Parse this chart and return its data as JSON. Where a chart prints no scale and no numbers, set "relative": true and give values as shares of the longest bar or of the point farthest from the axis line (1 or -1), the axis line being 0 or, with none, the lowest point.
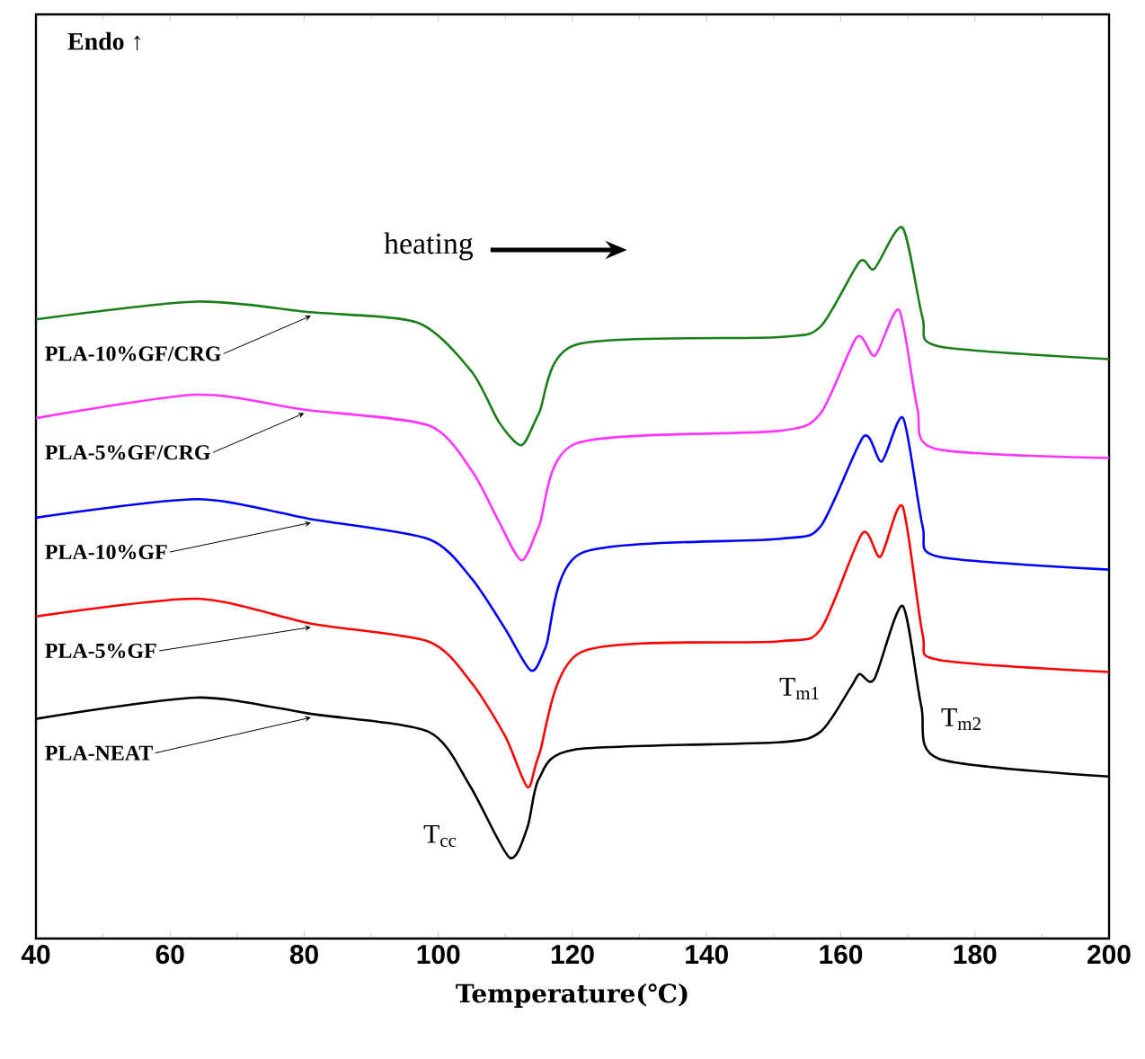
{
  "chart_data": {
    "type": "line",
    "relative": true,
    "xlabel": "Temperature(℃)",
    "xlim": [
      40,
      200
    ],
    "xticks": [
      40,
      60,
      80,
      100,
      120,
      140,
      160,
      180,
      200
    ],
    "annotations": [
      "Endo ↑",
      "heating",
      "T$_{cc}$",
      "T$_{m1}$",
      "T$_{m2}$"
    ],
    "legend": false,
    "grid": false,
    "marker": "none",
    "line_style": "solid",
    "series": [
      {
        "name": "PLA-10%GF/CRG",
        "color": "#1a7f1a",
        "x": [
          40,
          64,
          81,
          97,
          105,
          109,
          112.4,
          115,
          120.4,
          150.7,
          157,
          162.8,
          165,
          169.2,
          172.2,
          174.6,
          200
        ],
        "values": [
          0.871,
          0.896,
          0.881,
          0.866,
          0.797,
          0.727,
          0.694,
          0.739,
          0.835,
          0.846,
          0.861,
          0.952,
          0.942,
          1.0,
          0.873,
          0.833,
          0.815
        ]
      },
      {
        "name": "PLA-5%GF/CRG",
        "color": "#ff33ff",
        "x": [
          40,
          64,
          80,
          98.5,
          105,
          109,
          112.4,
          115,
          120.4,
          150.7,
          157,
          162.4,
          165.1,
          168.7,
          171.4,
          174.1,
          200
        ],
        "values": [
          0.732,
          0.765,
          0.744,
          0.722,
          0.658,
          0.587,
          0.532,
          0.58,
          0.696,
          0.714,
          0.739,
          0.846,
          0.82,
          0.884,
          0.747,
          0.689,
          0.676
        ]
      },
      {
        "name": "PLA-10%GF",
        "color": "#0000ff",
        "x": [
          40,
          64,
          81,
          98.5,
          105,
          110,
          113.8,
          116,
          121.3,
          150.7,
          157,
          163.4,
          166.1,
          169.3,
          172.2,
          174.6,
          200
        ],
        "values": [
          0.592,
          0.618,
          0.59,
          0.562,
          0.506,
          0.435,
          0.377,
          0.41,
          0.542,
          0.562,
          0.58,
          0.706,
          0.671,
          0.732,
          0.58,
          0.537,
          0.519
        ]
      },
      {
        "name": "PLA-5%GF",
        "color": "#ff0000",
        "x": [
          40,
          64,
          81,
          98.5,
          105,
          110,
          113.3,
          115,
          121.3,
          150.7,
          157,
          163.2,
          165.9,
          169.2,
          172.2,
          174.6,
          200
        ],
        "values": [
          0.453,
          0.478,
          0.443,
          0.418,
          0.359,
          0.284,
          0.213,
          0.258,
          0.403,
          0.418,
          0.435,
          0.57,
          0.537,
          0.608,
          0.428,
          0.392,
          0.375
        ]
      },
      {
        "name": "PLA-NEAT",
        "color": "#000000",
        "x": [
          40,
          64,
          81,
          98.5,
          104.7,
          110.6,
          113.3,
          115,
          120.4,
          150.7,
          157,
          161.4,
          162.8,
          165,
          169.2,
          172,
          174.6,
          200
        ],
        "values": [
          0.309,
          0.339,
          0.316,
          0.291,
          0.215,
          0.114,
          0.157,
          0.225,
          0.266,
          0.276,
          0.291,
          0.352,
          0.372,
          0.365,
          0.468,
          0.327,
          0.253,
          0.228
        ]
      }
    ]
  }
}
